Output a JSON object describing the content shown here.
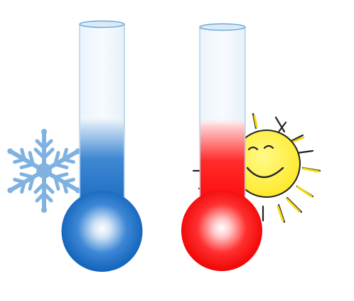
{
  "scene": {
    "background": "#ffffff"
  },
  "thermometers": [
    {
      "name": "cold",
      "fill_level": 0.55,
      "colors": {
        "liquid": "#1f73c9",
        "liquid_fade": "#cfe3f5",
        "bulb_center": "#ffffff",
        "bulb_mid": "#5a9fe0",
        "bulb_edge": "#1166bf",
        "glass": "#f3f8fc",
        "glass_stroke": "#6aa8d8"
      },
      "icon": "snowflake-icon",
      "icon_color": "#7fb2e0"
    },
    {
      "name": "hot",
      "fill_level": 0.55,
      "colors": {
        "liquid": "#ff1a1a",
        "liquid_fade": "#ffd6d6",
        "bulb_center": "#ffffff",
        "bulb_mid": "#ff4d4d",
        "bulb_edge": "#f00000",
        "glass": "#f3f8fc",
        "glass_stroke": "#6aa8d8"
      },
      "icon": "sun-icon",
      "icon_color": "#fff04a"
    }
  ]
}
